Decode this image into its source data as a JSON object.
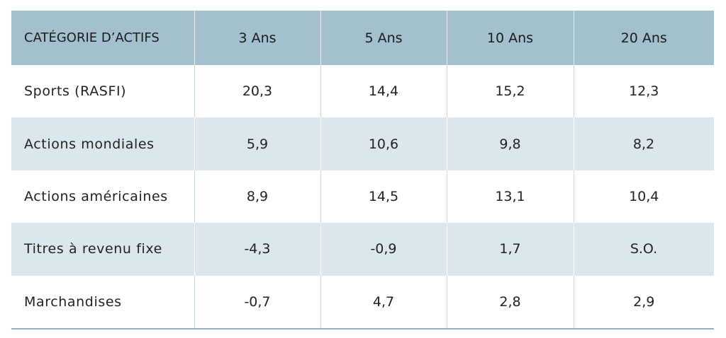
{
  "chart_data": {
    "type": "table",
    "columns": [
      "CATÉGORIE D’ACTIFS",
      "3 Ans",
      "5 Ans",
      "10 Ans",
      "20 Ans"
    ],
    "rows": [
      [
        "Sports (RASFI)",
        "20,3",
        "14,4",
        "15,2",
        "12,3"
      ],
      [
        "Actions mondiales",
        "5,9",
        "10,6",
        "9,8",
        "8,2"
      ],
      [
        "Actions américaines",
        "8,9",
        "14,5",
        "13,1",
        "10,4"
      ],
      [
        "Titres à revenu fixe",
        "-4,3",
        "-0,9",
        "1,7",
        "S.O."
      ],
      [
        "Marchandises",
        "-0,7",
        "4,7",
        "2,8",
        "2,9"
      ]
    ],
    "colors": {
      "header_bg": "#a2c0ce",
      "stripe_bg": "#dce7ed",
      "rule": "#8fb2c2"
    }
  }
}
